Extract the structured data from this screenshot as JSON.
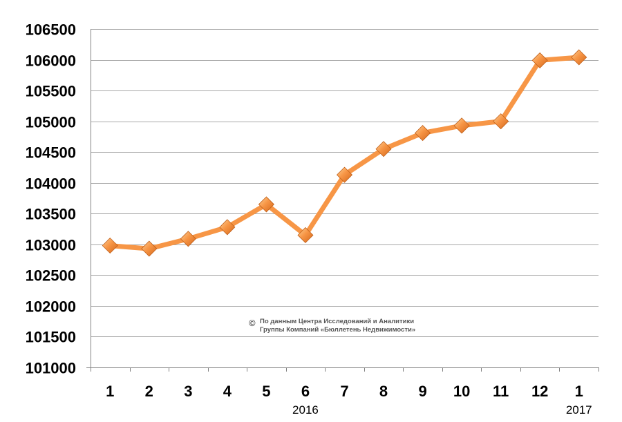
{
  "chart_data": {
    "type": "line",
    "categories": [
      "1",
      "2",
      "3",
      "4",
      "5",
      "6",
      "7",
      "8",
      "9",
      "10",
      "11",
      "12",
      "1"
    ],
    "year_labels": [
      {
        "text": "2016",
        "under_category": 5
      },
      {
        "text": "2017",
        "under_category": 12
      }
    ],
    "series": [
      {
        "values": [
          102980,
          102930,
          103090,
          103280,
          103650,
          103150,
          104130,
          104550,
          104810,
          104930,
          105000,
          105990,
          106040
        ],
        "color": "#F79646",
        "marker": "diamond"
      }
    ],
    "ylim": [
      101000,
      106500
    ],
    "yticks": [
      101000,
      101500,
      102000,
      102500,
      103000,
      103500,
      104000,
      104500,
      105000,
      105500,
      106000,
      106500
    ],
    "grid": true,
    "legend": "none",
    "title": "",
    "xlabel": "",
    "ylabel": ""
  },
  "watermark": {
    "symbol": "©",
    "line1": "По данным Центра Исследований и Аналитики",
    "line2": "Группы Компаний «Бюллетень Недвижимости»"
  },
  "colors": {
    "line": "#F79646",
    "grid": "#A6A6A6",
    "axis": "#808080"
  }
}
